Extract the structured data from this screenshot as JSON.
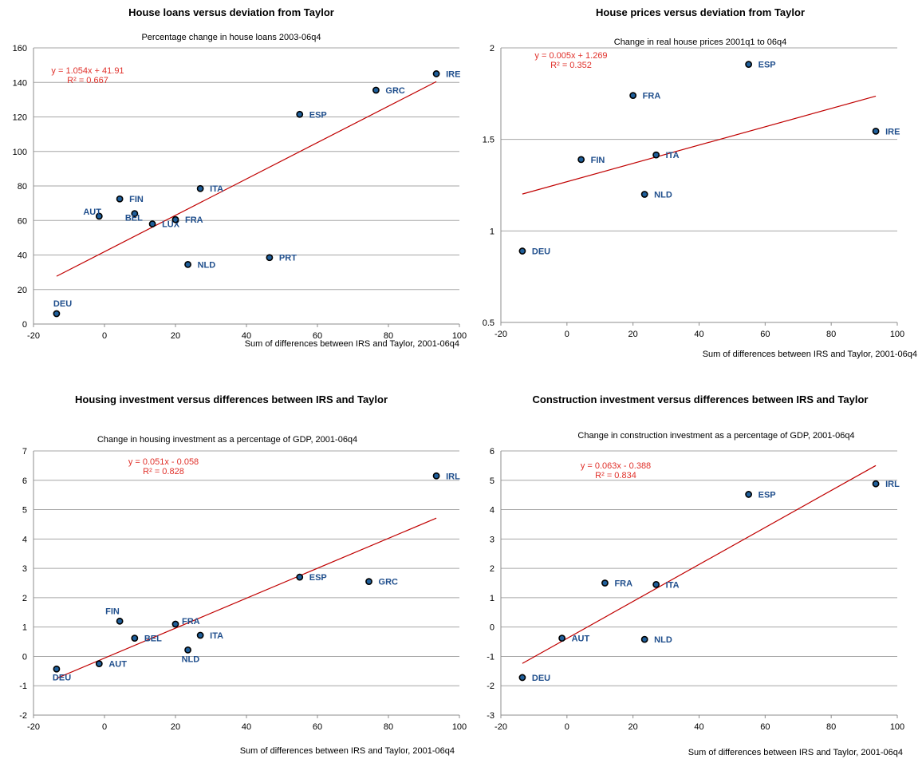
{
  "chart_data": [
    {
      "type": "scatter",
      "title": "House loans versus deviation from Taylor",
      "subtitle": "Percentage change in house loans 2003-06q4",
      "xlabel": "Sum of differences between IRS and Taylor, 2001-06q4",
      "xlim": [
        -20,
        100
      ],
      "ylim": [
        0,
        160
      ],
      "xticks": [
        -20,
        0,
        20,
        40,
        60,
        80,
        100
      ],
      "yticks": [
        0,
        20,
        40,
        60,
        80,
        100,
        120,
        140,
        160
      ],
      "grid": true,
      "equation": "y = 1.054x + 41.91",
      "r2": "R² = 0.667",
      "trendline": {
        "slope": 1.054,
        "intercept": 41.91,
        "x_range": [
          -13.5,
          93.5
        ]
      },
      "points": [
        {
          "label": "IRE",
          "x": 93.5,
          "y": 145
        },
        {
          "label": "GRC",
          "x": 76.5,
          "y": 135.5
        },
        {
          "label": "ESP",
          "x": 55,
          "y": 121.5
        },
        {
          "label": "ITA",
          "x": 27,
          "y": 78.5
        },
        {
          "label": "FIN",
          "x": 4.3,
          "y": 72.5
        },
        {
          "label": "AUT",
          "x": -1.5,
          "y": 62.5
        },
        {
          "label": "BEL",
          "x": 8.5,
          "y": 64
        },
        {
          "label": "LUX",
          "x": 13.5,
          "y": 58
        },
        {
          "label": "FRA",
          "x": 20,
          "y": 60.5
        },
        {
          "label": "PRT",
          "x": 46.5,
          "y": 38.5
        },
        {
          "label": "NLD",
          "x": 23.5,
          "y": 34.5
        },
        {
          "label": "DEU",
          "x": -13.5,
          "y": 6
        }
      ]
    },
    {
      "type": "scatter",
      "title": "House prices versus deviation from Taylor",
      "subtitle": "Change in real house prices 2001q1 to 06q4",
      "xlabel": "Sum of differences between IRS and Taylor, 2001-06q4",
      "xlim": [
        -20,
        100
      ],
      "ylim": [
        0.5,
        2
      ],
      "xticks": [
        -20,
        0,
        20,
        40,
        60,
        80,
        100
      ],
      "yticks": [
        0.5,
        1,
        1.5,
        2
      ],
      "grid": true,
      "equation": "y = 0.005x + 1.269",
      "r2": "R² = 0.352",
      "trendline": {
        "slope": 0.005,
        "intercept": 1.269,
        "x_range": [
          -13.5,
          93.5
        ]
      },
      "points": [
        {
          "label": "ESP",
          "x": 55,
          "y": 1.91
        },
        {
          "label": "FRA",
          "x": 20,
          "y": 1.74
        },
        {
          "label": "IRE",
          "x": 93.5,
          "y": 1.545
        },
        {
          "label": "ITA",
          "x": 27,
          "y": 1.415
        },
        {
          "label": "FIN",
          "x": 4.3,
          "y": 1.39
        },
        {
          "label": "NLD",
          "x": 23.5,
          "y": 1.2
        },
        {
          "label": "DEU",
          "x": -13.5,
          "y": 0.89
        }
      ]
    },
    {
      "type": "scatter",
      "title": "Housing investment versus differences between IRS and Taylor",
      "subtitle": "Change in housing investment as a percentage of GDP, 2001-06q4",
      "xlabel": "Sum of differences between IRS and Taylor, 2001-06q4",
      "xlim": [
        -20,
        100
      ],
      "ylim": [
        -2,
        7
      ],
      "xticks": [
        -20,
        0,
        20,
        40,
        60,
        80,
        100
      ],
      "yticks": [
        -2,
        -1,
        0,
        1,
        2,
        3,
        4,
        5,
        6,
        7
      ],
      "grid": true,
      "equation": "y = 0.051x - 0.058",
      "r2": "R² = 0.828",
      "trendline": {
        "slope": 0.051,
        "intercept": -0.058,
        "x_range": [
          -13.5,
          93.5
        ]
      },
      "points": [
        {
          "label": "IRL",
          "x": 93.5,
          "y": 6.15
        },
        {
          "label": "ESP",
          "x": 55,
          "y": 2.7
        },
        {
          "label": "GRC",
          "x": 74.5,
          "y": 2.55
        },
        {
          "label": "FIN",
          "x": 4.3,
          "y": 1.2
        },
        {
          "label": "FRA",
          "x": 20,
          "y": 1.1
        },
        {
          "label": "ITA",
          "x": 27,
          "y": 0.72
        },
        {
          "label": "BEL",
          "x": 8.5,
          "y": 0.62
        },
        {
          "label": "NLD",
          "x": 23.5,
          "y": 0.22
        },
        {
          "label": "AUT",
          "x": -1.5,
          "y": -0.25
        },
        {
          "label": "DEU",
          "x": -13.5,
          "y": -0.43
        }
      ]
    },
    {
      "type": "scatter",
      "title": "Construction investment versus differences between IRS and Taylor",
      "subtitle": "Change in construction investment as a percentage of GDP, 2001-06q4",
      "xlabel": "Sum of differences between IRS and Taylor, 2001-06q4",
      "xlim": [
        -20,
        100
      ],
      "ylim": [
        -3,
        6
      ],
      "xticks": [
        -20,
        0,
        20,
        40,
        60,
        80,
        100
      ],
      "yticks": [
        -3,
        -2,
        -1,
        0,
        1,
        2,
        3,
        4,
        5,
        6
      ],
      "grid": true,
      "equation": "y = 0.063x - 0.388",
      "r2": "R² = 0.834",
      "trendline": {
        "slope": 0.063,
        "intercept": -0.388,
        "x_range": [
          -13.5,
          93.5
        ]
      },
      "points": [
        {
          "label": "IRL",
          "x": 93.5,
          "y": 4.88
        },
        {
          "label": "ESP",
          "x": 55,
          "y": 4.52
        },
        {
          "label": "FRA",
          "x": 11.5,
          "y": 1.5
        },
        {
          "label": "ITA",
          "x": 27,
          "y": 1.45
        },
        {
          "label": "AUT",
          "x": -1.5,
          "y": -0.38
        },
        {
          "label": "NLD",
          "x": 23.5,
          "y": -0.42
        },
        {
          "label": "DEU",
          "x": -13.5,
          "y": -1.72
        }
      ]
    }
  ]
}
